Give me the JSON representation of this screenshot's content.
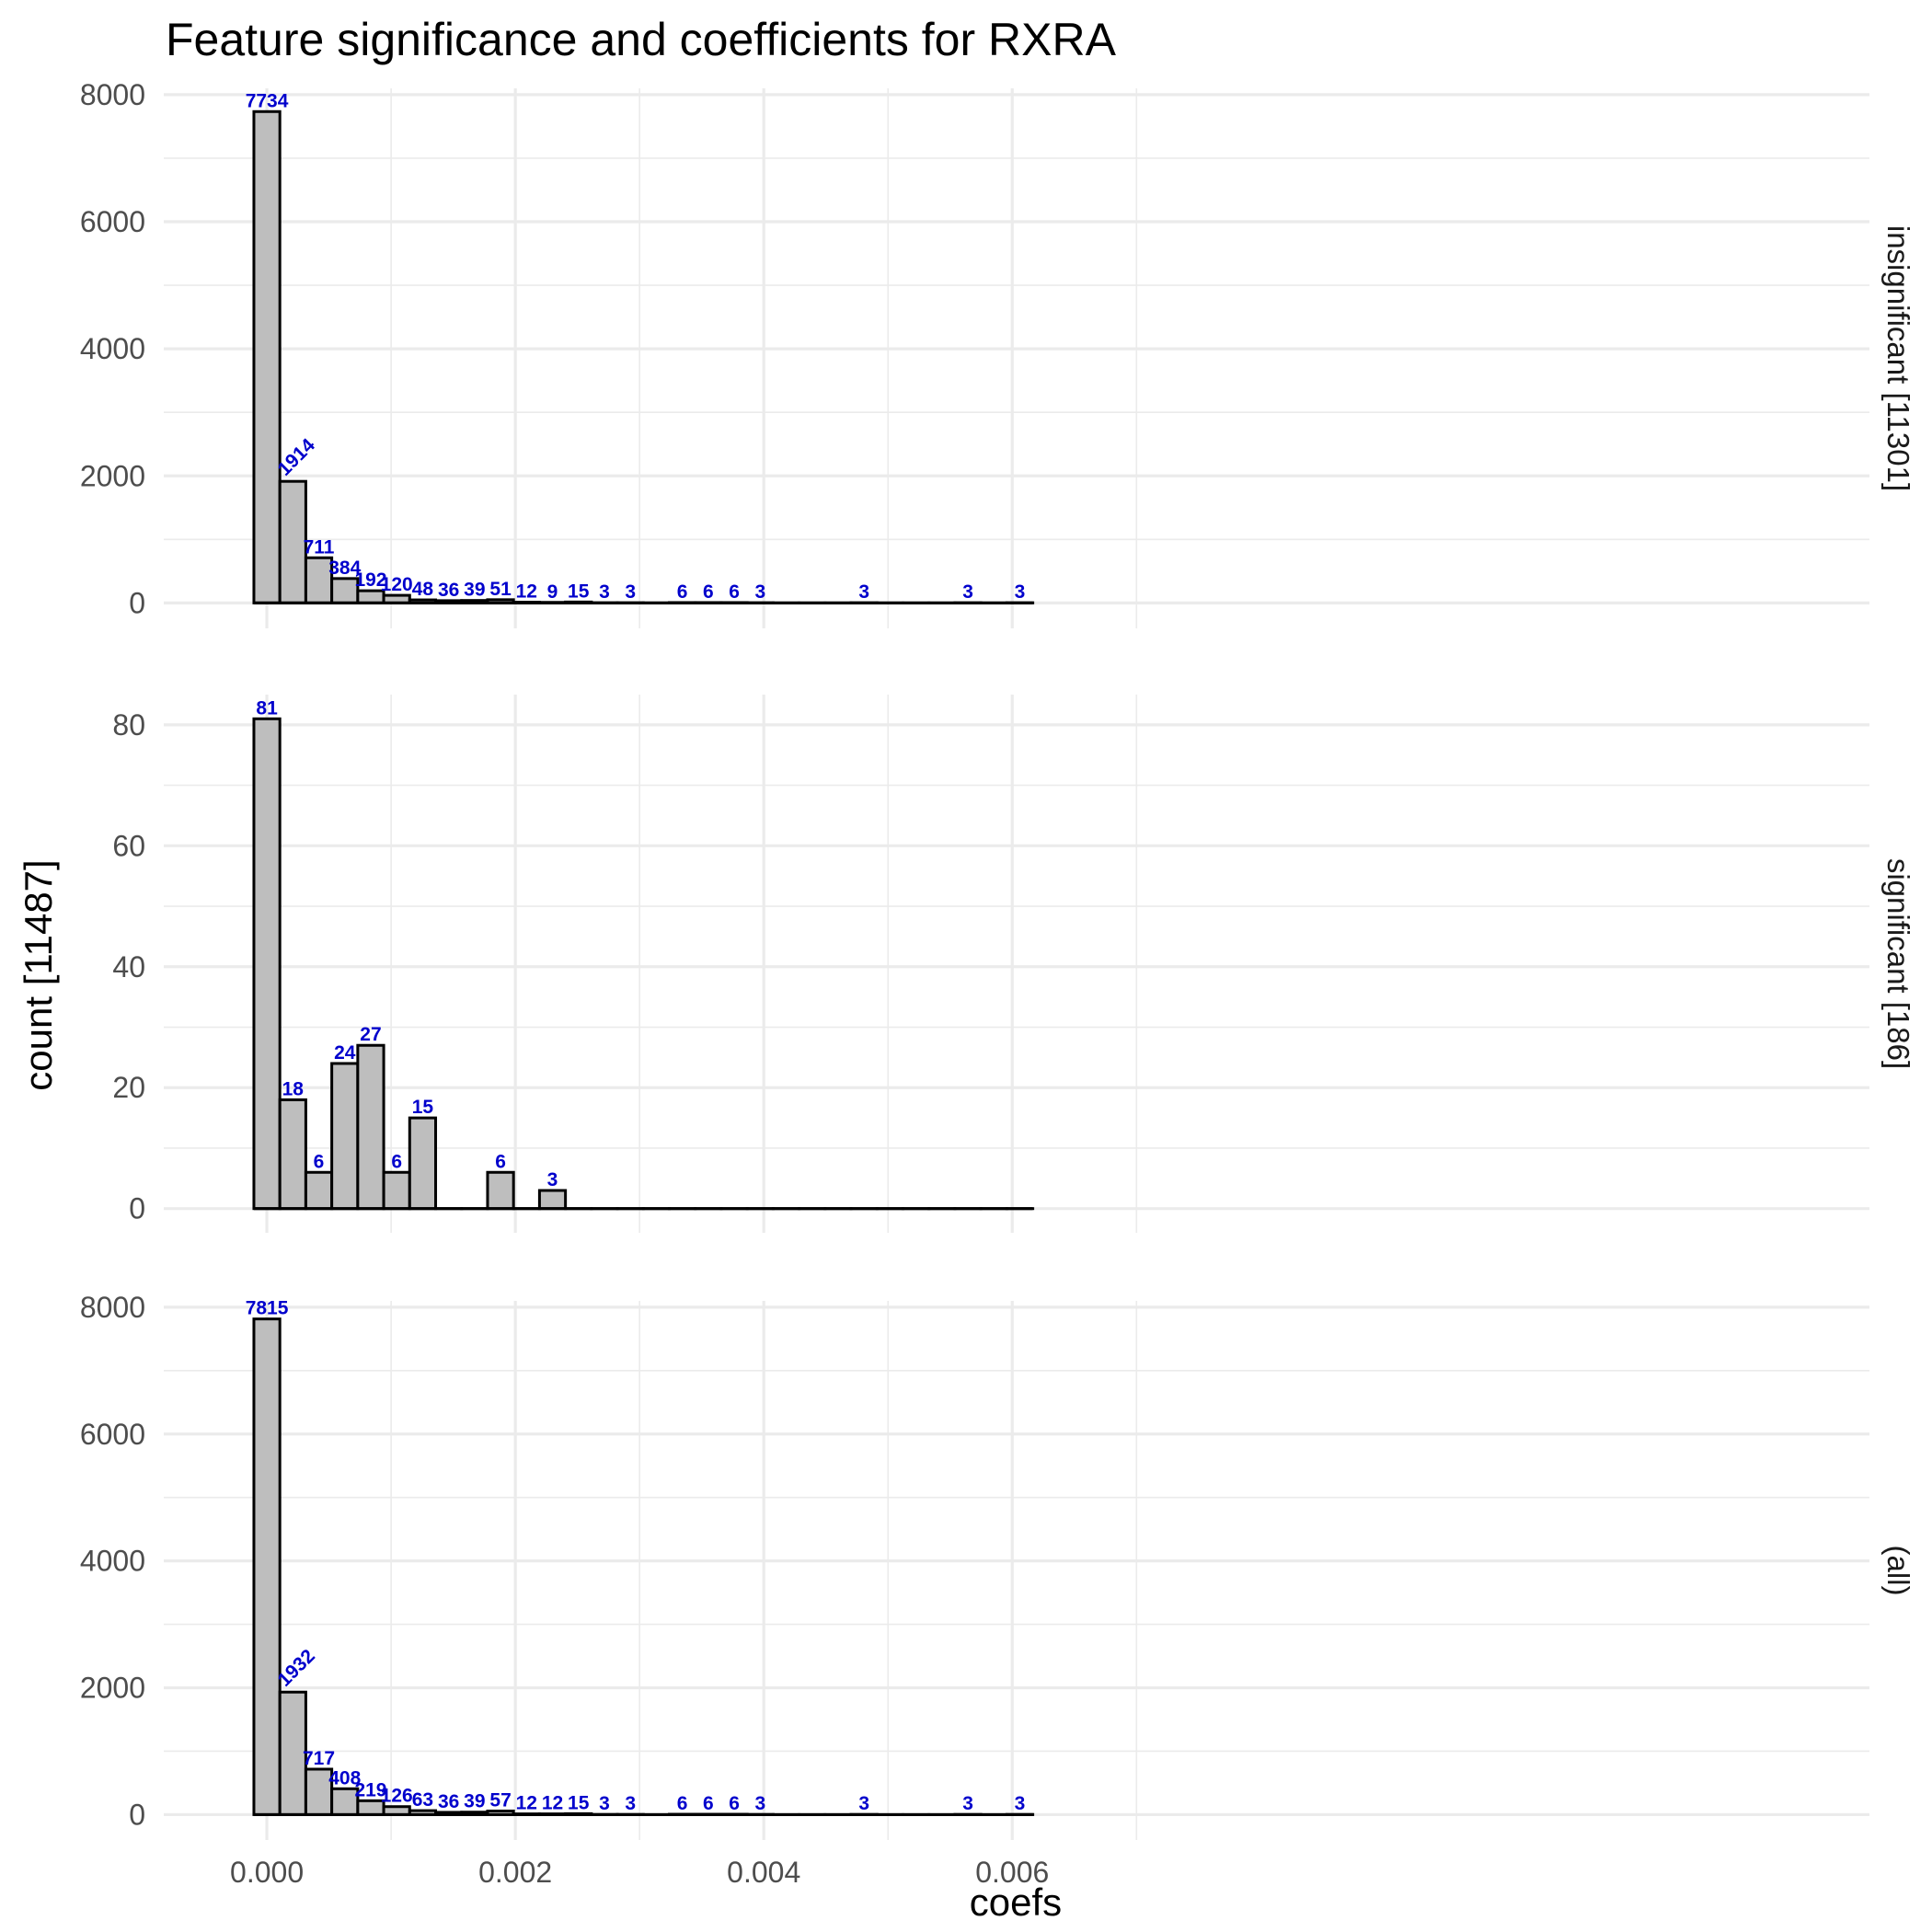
{
  "chart_data": {
    "type": "bar",
    "title": "Feature significance and coefficients for RXRA",
    "xlabel": "coefs",
    "ylabel": "count [11487]",
    "x_ticks": [
      "0.000",
      "0.002",
      "0.004",
      "0.006"
    ],
    "x_tick_values": [
      0,
      0.002,
      0.004,
      0.006
    ],
    "xlim": [
      -0.00083,
      0.0129
    ],
    "grid": true,
    "bin_width": 0.000209,
    "bin_centers": [
      0.0,
      0.000209,
      0.000418,
      0.000627,
      0.000836,
      0.001045,
      0.001254,
      0.001463,
      0.001672,
      0.001881,
      0.00209,
      0.002299,
      0.002508,
      0.002717,
      0.002926,
      0.003135,
      0.003344,
      0.003553,
      0.003762,
      0.003971,
      0.00418,
      0.004389,
      0.004598,
      0.004807,
      0.005016,
      0.005225,
      0.005434,
      0.005643,
      0.005852,
      0.006061
    ],
    "panels": [
      {
        "strip": "insignificant [11301]",
        "y_ticks": [
          "0",
          "2000",
          "4000",
          "6000",
          "8000"
        ],
        "y_tick_values": [
          0,
          2000,
          4000,
          6000,
          8000
        ],
        "ylim": [
          -400,
          8100
        ],
        "values": [
          7734,
          1914,
          711,
          384,
          192,
          120,
          48,
          36,
          39,
          51,
          12,
          9,
          15,
          3,
          3,
          0,
          6,
          6,
          6,
          3,
          0,
          0,
          0,
          3,
          0,
          0,
          0,
          3,
          0,
          3
        ],
        "labels": [
          "7734",
          "1914",
          "711",
          "384",
          "192",
          "120",
          "48",
          "36",
          "39",
          "51",
          "12",
          "9",
          "15",
          "3",
          "3",
          "",
          "6",
          "6",
          "6",
          "3",
          "",
          "",
          "",
          "3",
          "",
          "",
          "",
          "3",
          "",
          "3"
        ]
      },
      {
        "strip": "significant [186]",
        "y_ticks": [
          "0",
          "20",
          "40",
          "60",
          "80"
        ],
        "y_tick_values": [
          0,
          20,
          40,
          60,
          80
        ],
        "ylim": [
          -4,
          85
        ],
        "values": [
          81,
          18,
          6,
          24,
          27,
          6,
          15,
          0,
          0,
          6,
          0,
          3,
          0,
          0,
          0,
          0,
          0,
          0,
          0,
          0,
          0,
          0,
          0,
          0,
          0,
          0,
          0,
          0,
          0,
          0
        ],
        "labels": [
          "81",
          "18",
          "6",
          "24",
          "27",
          "6",
          "15",
          "",
          "",
          "6",
          "",
          "3",
          "",
          "",
          "",
          "",
          "",
          "",
          "",
          "",
          "",
          "",
          "",
          "",
          "",
          "",
          "",
          "",
          "",
          ""
        ]
      },
      {
        "strip": "(all)",
        "y_ticks": [
          "0",
          "2000",
          "4000",
          "6000",
          "8000"
        ],
        "y_tick_values": [
          0,
          2000,
          4000,
          6000,
          8000
        ],
        "ylim": [
          -400,
          8100
        ],
        "values": [
          7815,
          1932,
          717,
          408,
          219,
          126,
          63,
          36,
          39,
          57,
          12,
          12,
          15,
          3,
          3,
          0,
          6,
          6,
          6,
          3,
          0,
          0,
          0,
          3,
          0,
          0,
          0,
          3,
          0,
          3
        ],
        "labels": [
          "7815",
          "1932",
          "717",
          "408",
          "219",
          "126",
          "63",
          "36",
          "39",
          "57",
          "12",
          "12",
          "15",
          "3",
          "3",
          "",
          "6",
          "6",
          "6",
          "3",
          "",
          "",
          "",
          "3",
          "",
          "",
          "",
          "3",
          "",
          "3"
        ]
      }
    ]
  }
}
